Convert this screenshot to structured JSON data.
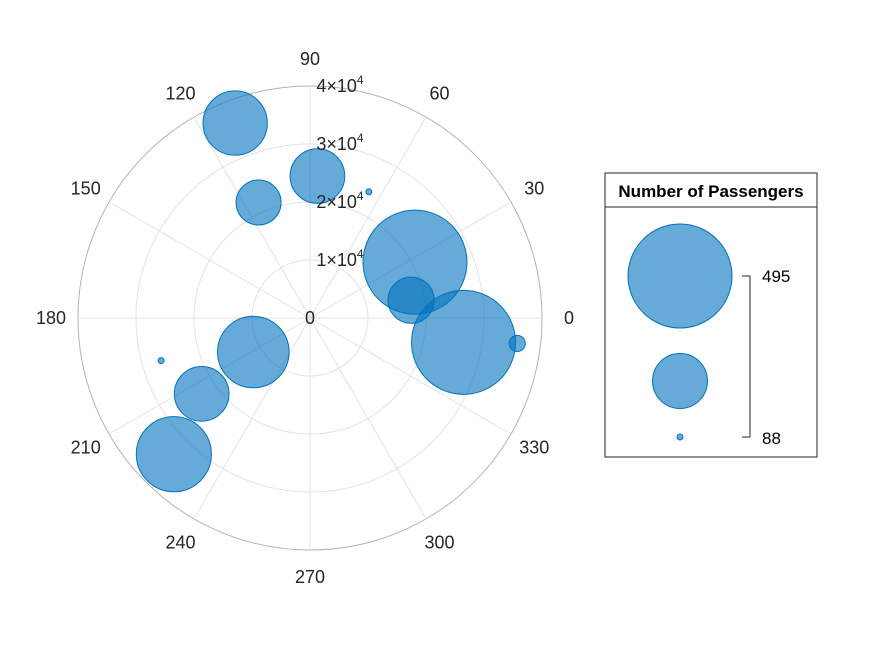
{
  "chart_data": {
    "type": "polar-bubble",
    "theta_ticks": [
      "0",
      "30",
      "60",
      "90",
      "120",
      "150",
      "180",
      "210",
      "240",
      "270",
      "300",
      "330"
    ],
    "r_ticks": [
      {
        "value": 0,
        "label": "0",
        "mantissa": "",
        "exponent": ""
      },
      {
        "value": 10000,
        "label": "",
        "mantissa": "1×10",
        "exponent": "4"
      },
      {
        "value": 20000,
        "label": "",
        "mantissa": "2×10",
        "exponent": "4"
      },
      {
        "value": 30000,
        "label": "",
        "mantissa": "3×10",
        "exponent": "4"
      },
      {
        "value": 40000,
        "label": "",
        "mantissa": "4×10",
        "exponent": "4"
      }
    ],
    "rlim": [
      0,
      40000
    ],
    "grid": true,
    "bubble_color": "#0072BD",
    "bubble_alpha": 0.6,
    "size_range": [
      88,
      495
    ],
    "points": [
      {
        "theta": 111,
        "r": 36000,
        "size": 330
      },
      {
        "theta": 87,
        "r": 24500,
        "size": 290
      },
      {
        "theta": 65,
        "r": 24000,
        "size": 88
      },
      {
        "theta": 114,
        "r": 21800,
        "size": 250
      },
      {
        "theta": 28,
        "r": 20500,
        "size": 495
      },
      {
        "theta": 10,
        "r": 17700,
        "size": 255
      },
      {
        "theta": -9,
        "r": 26800,
        "size": 495
      },
      {
        "theta": -7,
        "r": 36000,
        "size": 130
      },
      {
        "theta": 196,
        "r": 26700,
        "size": 88
      },
      {
        "theta": 211,
        "r": 11400,
        "size": 360
      },
      {
        "theta": 215,
        "r": 22800,
        "size": 290
      },
      {
        "theta": 225,
        "r": 33200,
        "size": 375
      }
    ],
    "legend": {
      "title": "Number of Passengers",
      "max_label": "495",
      "min_label": "88",
      "placement": "right"
    }
  }
}
